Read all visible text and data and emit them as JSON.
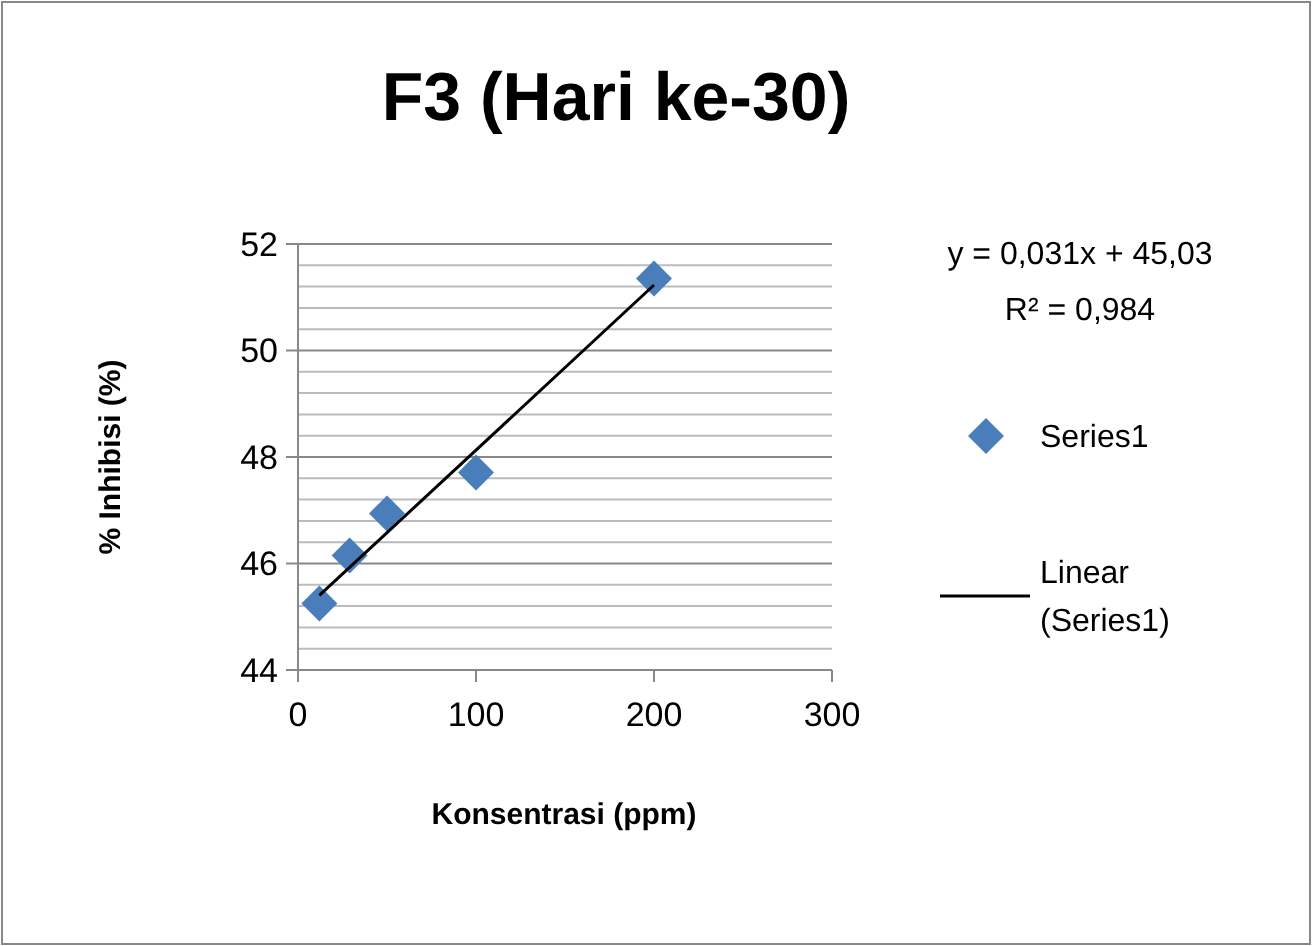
{
  "chart_data": {
    "type": "scatter",
    "title": "F3 (Hari ke-30)",
    "xlabel": "Konsentrasi (ppm)",
    "ylabel": "% Inhibisi (%)",
    "annotations": [
      "y = 0,031x + 45,03",
      "R² = 0,984"
    ],
    "series": [
      {
        "name": "Series1",
        "color": "#4a7ebb",
        "marker": "diamond",
        "x": [
          12,
          29,
          50,
          100,
          200
        ],
        "values": [
          45.25,
          46.15,
          46.94,
          47.71,
          51.35
        ]
      },
      {
        "name": "Linear (Series1)",
        "type": "line",
        "color": "#000000",
        "marker": "none",
        "x": [
          12,
          200
        ],
        "values": [
          45.4,
          51.23
        ]
      }
    ],
    "xlim": [
      0,
      300
    ],
    "xticks": [
      0,
      100,
      200,
      300
    ],
    "ylim": [
      44,
      52
    ],
    "yticks": [
      44,
      {
        "value": 44.4,
        "label": null
      },
      {
        "value": 44.8,
        "label": null
      },
      {
        "value": 45.2,
        "label": null
      },
      {
        "value": 45.6,
        "label": null
      },
      46,
      {
        "value": 46.4,
        "label": null
      },
      {
        "value": 46.8,
        "label": null
      },
      {
        "value": 47.2,
        "label": null
      },
      {
        "value": 47.6,
        "label": null
      },
      48,
      {
        "value": 48.4,
        "label": null
      },
      {
        "value": 48.8,
        "label": null
      },
      {
        "value": 49.2,
        "label": null
      },
      {
        "value": 49.6,
        "label": null
      },
      50,
      {
        "value": 50.4,
        "label": null
      },
      {
        "value": 50.8,
        "label": null
      },
      {
        "value": 51.2,
        "label": null
      },
      {
        "value": 51.6,
        "label": null
      },
      52
    ],
    "grid": "y",
    "legend": "right"
  }
}
